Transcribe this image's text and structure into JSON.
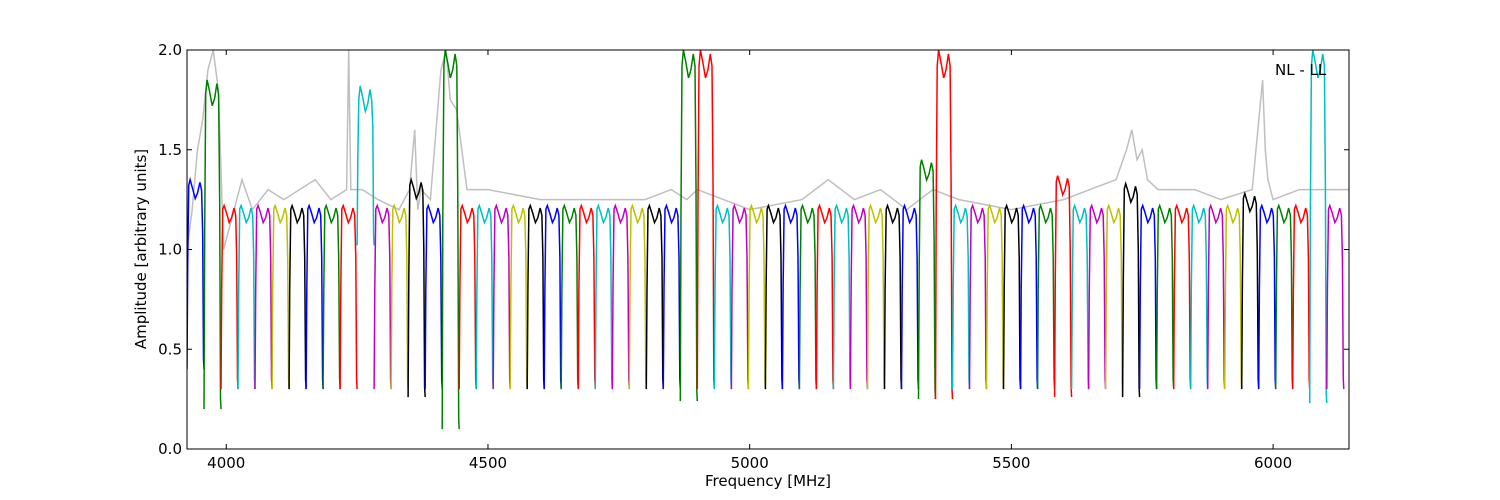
{
  "chart_data": {
    "type": "line",
    "title": "",
    "xlabel": "Frequency [MHz]",
    "ylabel": "Amplitude [arbitrary units]",
    "xlim": [
      3925,
      6145
    ],
    "ylim": [
      0.0,
      2.0
    ],
    "x_ticks": [
      "4000",
      "4500",
      "5000",
      "5500",
      "6000"
    ],
    "x_tick_values": [
      4000,
      4500,
      5000,
      5500,
      6000
    ],
    "y_ticks": [
      "0.0",
      "0.5",
      "1.0",
      "1.5",
      "2.0"
    ],
    "y_tick_values": [
      0.0,
      0.5,
      1.0,
      1.5,
      2.0
    ],
    "annotation": "NL - LL",
    "grid": false,
    "background_series": {
      "color": "#bfbfbf",
      "x": [
        3925,
        3935,
        3945,
        3955,
        3965,
        3975,
        3985,
        3995,
        4010,
        4030,
        4050,
        4080,
        4110,
        4140,
        4170,
        4200,
        4230,
        4234,
        4238,
        4260,
        4290,
        4330,
        4350,
        4360,
        4366,
        4372,
        4390,
        4410,
        4420,
        4428,
        4440,
        4460,
        4500,
        4600,
        4700,
        4800,
        4850,
        4880,
        4900,
        4950,
        5000,
        5100,
        5150,
        5200,
        5250,
        5300,
        5350,
        5400,
        5500,
        5600,
        5650,
        5700,
        5720,
        5730,
        5740,
        5750,
        5760,
        5780,
        5800,
        5850,
        5900,
        5960,
        5980,
        5985,
        5990,
        6000,
        6050,
        6100,
        6145
      ],
      "y": [
        1.0,
        1.2,
        1.5,
        1.65,
        1.9,
        2.0,
        1.8,
        1.0,
        1.15,
        1.35,
        1.2,
        1.3,
        1.25,
        1.3,
        1.35,
        1.25,
        1.3,
        2.0,
        1.3,
        1.3,
        1.25,
        1.2,
        1.3,
        1.6,
        1.2,
        1.3,
        1.25,
        1.9,
        2.0,
        1.75,
        1.7,
        1.3,
        1.3,
        1.25,
        1.25,
        1.25,
        1.3,
        1.25,
        1.3,
        1.25,
        1.2,
        1.25,
        1.35,
        1.25,
        1.3,
        1.2,
        1.3,
        1.25,
        1.2,
        1.25,
        1.3,
        1.35,
        1.5,
        1.6,
        1.45,
        1.5,
        1.35,
        1.3,
        1.3,
        1.3,
        1.25,
        1.3,
        1.85,
        1.5,
        1.35,
        1.25,
        1.3,
        1.3,
        1.3
      ]
    },
    "channels": {
      "colors": [
        "#0000ff",
        "#008000",
        "#ff0000",
        "#00bfbf",
        "#bf00bf",
        "#bfbf00",
        "#000000"
      ],
      "start": 3925,
      "width": 32.5,
      "count": 68,
      "peak": 1.22,
      "trough": 0.3,
      "special": [
        {
          "index": 0,
          "peak": 1.35,
          "trough": 0.4
        },
        {
          "index": 1,
          "peak": 1.85,
          "trough": 0.2
        },
        {
          "index": 10,
          "peak": 1.82,
          "trough": 1.02
        },
        {
          "index": 13,
          "peak": 1.35,
          "trough": 0.26
        },
        {
          "index": 15,
          "peak": 2.0,
          "trough": 0.1
        },
        {
          "index": 29,
          "peak": 2.0,
          "trough": 0.24
        },
        {
          "index": 30,
          "peak": 2.0,
          "trough": 0.3
        },
        {
          "index": 43,
          "peak": 1.45,
          "trough": 0.25
        },
        {
          "index": 44,
          "peak": 2.0,
          "trough": 0.25
        },
        {
          "index": 51,
          "peak": 1.37,
          "trough": 0.26
        },
        {
          "index": 55,
          "peak": 1.33,
          "trough": 0.26
        },
        {
          "index": 62,
          "peak": 1.28,
          "trough": 0.3
        },
        {
          "index": 66,
          "peak": 2.0,
          "trough": 0.23
        }
      ]
    }
  }
}
